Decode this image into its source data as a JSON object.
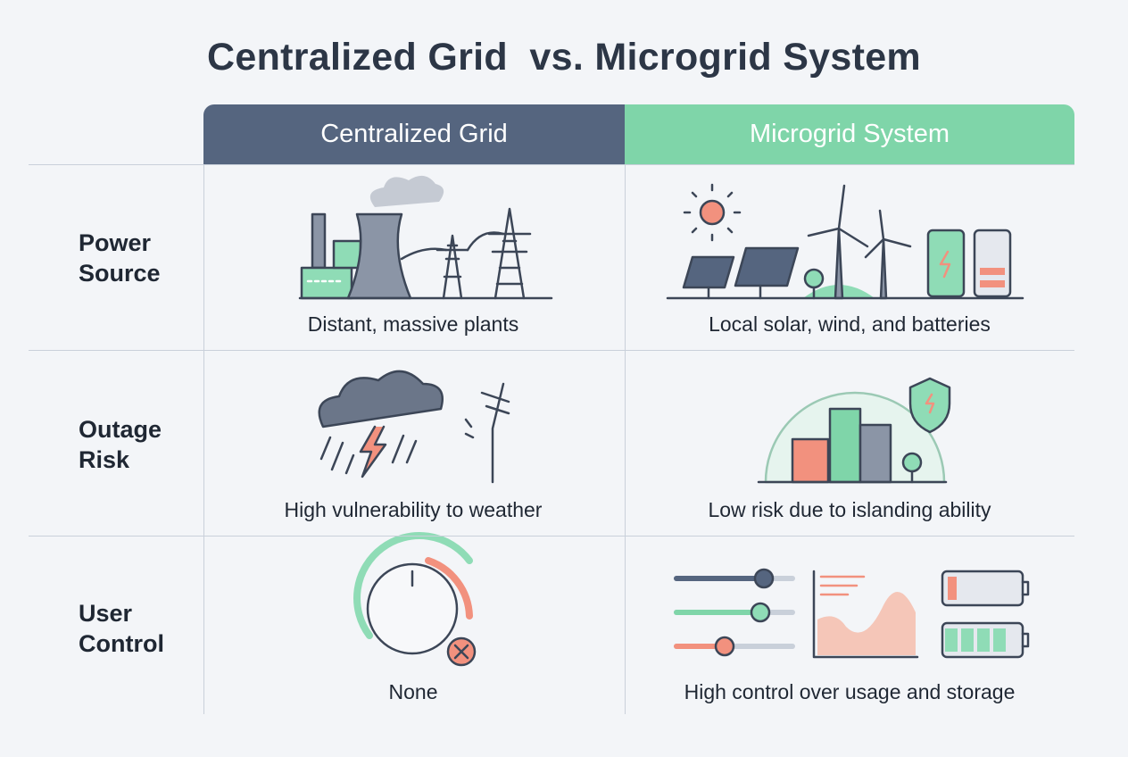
{
  "title": "Centralized Grid  vs. Microgrid System",
  "columns": [
    "Centralized Grid",
    "Microgrid System"
  ],
  "rows": [
    {
      "label": "Power Source",
      "cells": [
        "Distant, massive plants",
        "Local solar, wind, and batteries"
      ]
    },
    {
      "label": "Outage Risk",
      "cells": [
        "High vulnerability to weather",
        "Low risk due to islanding ability"
      ]
    },
    {
      "label": "User Control",
      "cells": [
        "None",
        "High control over usage and storage"
      ]
    }
  ]
}
